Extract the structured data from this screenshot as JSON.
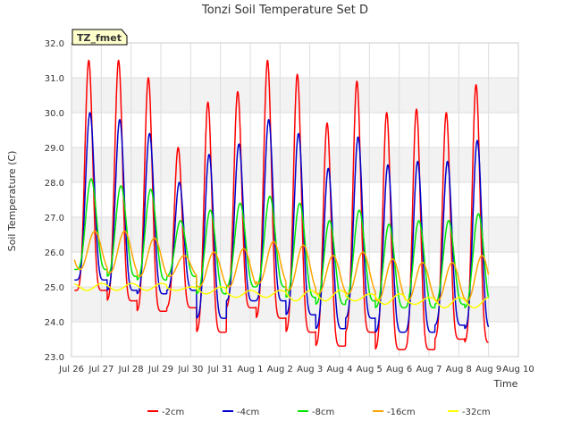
{
  "chart_data": {
    "type": "line",
    "title": "Tonzi Soil Temperature Set D",
    "xlabel": "Time",
    "ylabel": "Soil Temperature (C)",
    "annotation": "TZ_fmet",
    "ylim": [
      23.0,
      32.0
    ],
    "xlim": [
      0,
      15
    ],
    "y_ticks": [
      "23.0",
      "24.0",
      "25.0",
      "26.0",
      "27.0",
      "28.0",
      "29.0",
      "30.0",
      "31.0",
      "32.0"
    ],
    "x_ticks": [
      "Jul 26",
      "Jul 27",
      "Jul 28",
      "Jul 29",
      "Jul 30",
      "Jul 31",
      "Aug 1",
      "Aug 2",
      "Aug 3",
      "Aug 4",
      "Aug 5",
      "Aug 6",
      "Aug 7",
      "Aug 8",
      "Aug 9",
      "Aug 10"
    ],
    "grid": true,
    "legend_position": "bottom",
    "series": [
      {
        "name": "-2cm",
        "color": "#ff0000",
        "max": [
          31.5,
          31.5,
          31.0,
          29.0,
          30.3,
          30.6,
          31.5,
          31.1,
          29.7,
          30.9,
          30.0,
          30.1,
          30.0,
          30.8
        ],
        "min": [
          24.9,
          24.6,
          24.3,
          24.4,
          23.7,
          24.4,
          24.1,
          23.7,
          23.3,
          23.7,
          23.2,
          23.2,
          23.5,
          23.4
        ]
      },
      {
        "name": "-4cm",
        "color": "#0000cc",
        "max": [
          30.0,
          29.8,
          29.4,
          28.0,
          28.8,
          29.1,
          29.8,
          29.4,
          28.4,
          29.3,
          28.5,
          28.6,
          28.6,
          29.2
        ],
        "min": [
          25.2,
          24.9,
          24.8,
          24.9,
          24.1,
          24.6,
          24.6,
          24.2,
          23.8,
          24.1,
          23.7,
          23.7,
          23.9,
          23.8
        ]
      },
      {
        "name": "-8cm",
        "color": "#00e600",
        "max": [
          28.1,
          27.9,
          27.8,
          26.9,
          27.2,
          27.4,
          27.6,
          27.4,
          26.9,
          27.2,
          26.8,
          26.9,
          26.9,
          27.1
        ],
        "min": [
          25.5,
          25.3,
          25.2,
          25.3,
          24.8,
          25.0,
          25.0,
          24.7,
          24.5,
          24.6,
          24.4,
          24.4,
          24.5,
          24.4
        ]
      },
      {
        "name": "-16cm",
        "color": "#ffa500",
        "max": [
          26.6,
          26.6,
          26.4,
          25.9,
          26.0,
          26.1,
          26.3,
          26.2,
          25.9,
          26.0,
          25.8,
          25.7,
          25.7,
          25.9
        ],
        "min": [
          25.5,
          25.4,
          25.3,
          25.3,
          25.0,
          25.0,
          25.1,
          24.9,
          24.8,
          24.8,
          24.6,
          24.6,
          24.6,
          24.6
        ]
      },
      {
        "name": "-32cm",
        "color": "#ffff00",
        "max": [
          25.1,
          25.1,
          25.1,
          25.0,
          25.0,
          24.9,
          24.9,
          24.9,
          24.9,
          24.8,
          24.8,
          24.7,
          24.7,
          24.7
        ],
        "min": [
          24.9,
          24.9,
          24.9,
          24.9,
          24.8,
          24.7,
          24.7,
          24.6,
          24.6,
          24.6,
          24.5,
          24.5,
          24.4,
          24.4
        ]
      }
    ]
  }
}
